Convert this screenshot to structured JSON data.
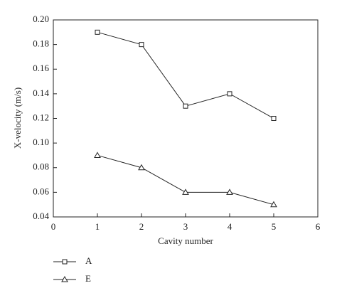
{
  "chart_data": {
    "type": "line",
    "x_label": "Cavity number",
    "y_label": "X-velocity (m/s)",
    "x": [
      1,
      2,
      3,
      4,
      5
    ],
    "series": [
      {
        "name": "A",
        "color": "#222222",
        "marker": "square",
        "values": [
          0.19,
          0.18,
          0.13,
          0.14,
          0.12
        ]
      },
      {
        "name": "E",
        "color": "#222222",
        "marker": "triangle",
        "values": [
          0.09,
          0.08,
          0.06,
          0.06,
          0.05
        ]
      }
    ],
    "xlim": [
      0,
      6
    ],
    "xticks": [
      0,
      1,
      2,
      3,
      4,
      5,
      6
    ],
    "ylim": [
      0.04,
      0.2
    ],
    "yticks": [
      0.04,
      0.06,
      0.08,
      {
        "value": 0.1,
        "label": "0.10"
      },
      0.12,
      0.14,
      0.16,
      0.18,
      {
        "value": 0.2,
        "label": "0.20"
      }
    ],
    "legend": "bottom-left"
  }
}
